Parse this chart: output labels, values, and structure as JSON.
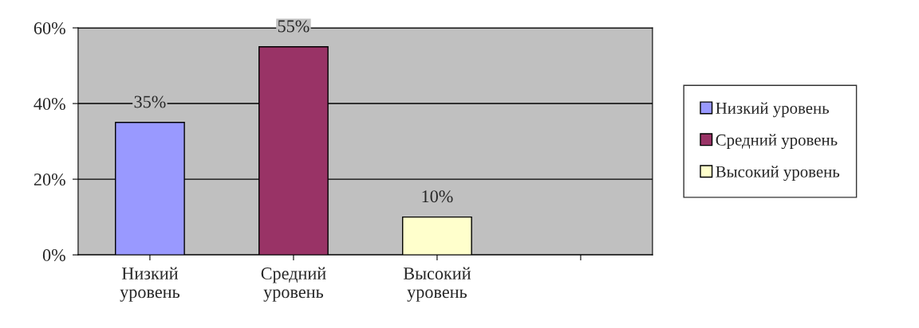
{
  "chart_data": {
    "type": "bar",
    "categories": [
      "Низкий уровень",
      "Средний уровень",
      "Высокий уровень",
      null
    ],
    "series": [
      {
        "name": "Низкий уровень",
        "color": "#9999ff",
        "values": [
          35,
          null,
          null,
          null
        ],
        "value_labels": [
          "35%",
          null,
          null,
          null
        ]
      },
      {
        "name": "Средний уровень",
        "color": "#993366",
        "values": [
          null,
          55,
          null,
          null
        ],
        "value_labels": [
          null,
          "55%",
          null,
          null
        ]
      },
      {
        "name": "Высокий уровень",
        "color": "#ffffcc",
        "values": [
          null,
          null,
          10,
          null
        ],
        "value_labels": [
          null,
          null,
          "10%",
          null
        ]
      }
    ],
    "ylim": [
      0,
      60
    ],
    "yticks": [
      {
        "value": 0,
        "label": "0%"
      },
      {
        "value": 20,
        "label": "20%"
      },
      {
        "value": 40,
        "label": "40%"
      },
      {
        "value": 60,
        "label": "60%"
      }
    ],
    "grid": "y",
    "legend": "right"
  }
}
